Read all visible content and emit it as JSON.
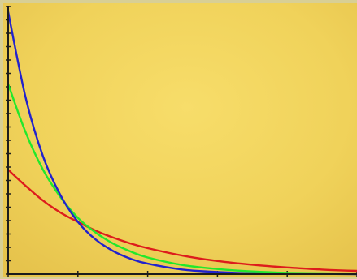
{
  "chart_data": {
    "type": "line",
    "title": "",
    "xlabel": "",
    "ylabel": "",
    "xlim": [
      0,
      5
    ],
    "ylim": [
      0,
      10
    ],
    "grid": false,
    "x_ticks": [
      0,
      1,
      2,
      3,
      4,
      5
    ],
    "y_ticks": [
      0,
      0.5,
      1,
      1.5,
      2,
      2.5,
      3,
      3.5,
      4,
      4.5,
      5,
      5.5,
      6,
      6.5,
      7,
      7.5,
      8,
      8.5,
      9,
      9.5,
      10
    ],
    "background_color": "#f0d25a",
    "series": [
      {
        "color": "#dd1c1c",
        "x": [
          0,
          0.25,
          0.5,
          0.75,
          1,
          1.25,
          1.5,
          1.75,
          2,
          2.5,
          3,
          3.5,
          4,
          4.5,
          5
        ],
        "y": [
          3.9,
          3.3,
          2.75,
          2.3,
          1.95,
          1.63,
          1.37,
          1.15,
          0.97,
          0.69,
          0.49,
          0.35,
          0.25,
          0.17,
          0.12
        ]
      },
      {
        "color": "#22e82b",
        "x": [
          0,
          0.25,
          0.5,
          0.75,
          1,
          1.25,
          1.5,
          1.75,
          2,
          2.5,
          3,
          3.5,
          4,
          4.5,
          5
        ],
        "y": [
          7.1,
          5.3,
          3.9,
          2.88,
          2.1,
          1.56,
          1.15,
          0.85,
          0.62,
          0.34,
          0.19,
          0.1,
          0.05,
          0.03,
          0.02
        ]
      },
      {
        "color": "#2222cc",
        "x": [
          0,
          0.25,
          0.5,
          0.75,
          1,
          1.25,
          1.5,
          1.75,
          2,
          2.5,
          3,
          3.5,
          4,
          4.5,
          5
        ],
        "y": [
          9.8,
          6.6,
          4.4,
          2.95,
          1.95,
          1.3,
          0.87,
          0.58,
          0.39,
          0.17,
          0.08,
          0.03,
          0.02,
          0.01,
          0.0
        ]
      }
    ]
  }
}
